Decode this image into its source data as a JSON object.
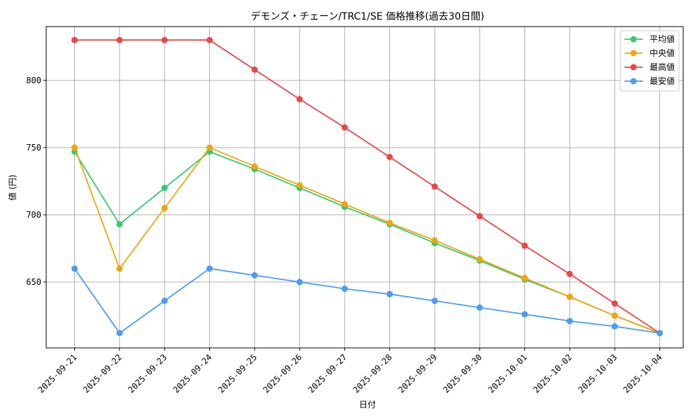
{
  "chart_data": {
    "type": "line",
    "title": "デモンズ・チェーン/TRC1/SE 価格推移(過去30日間)",
    "xlabel": "日付",
    "ylabel": "値 (円)",
    "categories": [
      "2025-09-21",
      "2025-09-22",
      "2025-09-23",
      "2025-09-24",
      "2025-09-25",
      "2025-09-26",
      "2025-09-27",
      "2025-09-28",
      "2025-09-29",
      "2025-09-30",
      "2025-10-01",
      "2025-10-02",
      "2025-10-03",
      "2025-10-04"
    ],
    "ylim": [
      601,
      840
    ],
    "yticks": [
      650,
      700,
      750,
      800
    ],
    "grid": true,
    "legend_position": "top-right",
    "series": [
      {
        "name": "平均値",
        "color": "#2ecc71",
        "values": [
          747,
          693,
          720,
          747,
          734,
          720,
          706,
          693,
          679,
          666,
          652,
          639,
          625,
          612
        ]
      },
      {
        "name": "中央値",
        "color": "#f5a30a",
        "values": [
          750,
          660,
          705,
          750,
          736,
          722,
          708,
          694,
          681,
          667,
          653,
          639,
          625,
          612
        ]
      },
      {
        "name": "最高値",
        "color": "#ee4444",
        "values": [
          830,
          830,
          830,
          830,
          808,
          786,
          765,
          743,
          721,
          699,
          677,
          656,
          634,
          612
        ]
      },
      {
        "name": "最安値",
        "color": "#4a9cf6",
        "values": [
          660,
          612,
          636,
          660,
          655,
          650,
          645,
          641,
          636,
          631,
          626,
          621,
          617,
          612
        ]
      }
    ]
  }
}
